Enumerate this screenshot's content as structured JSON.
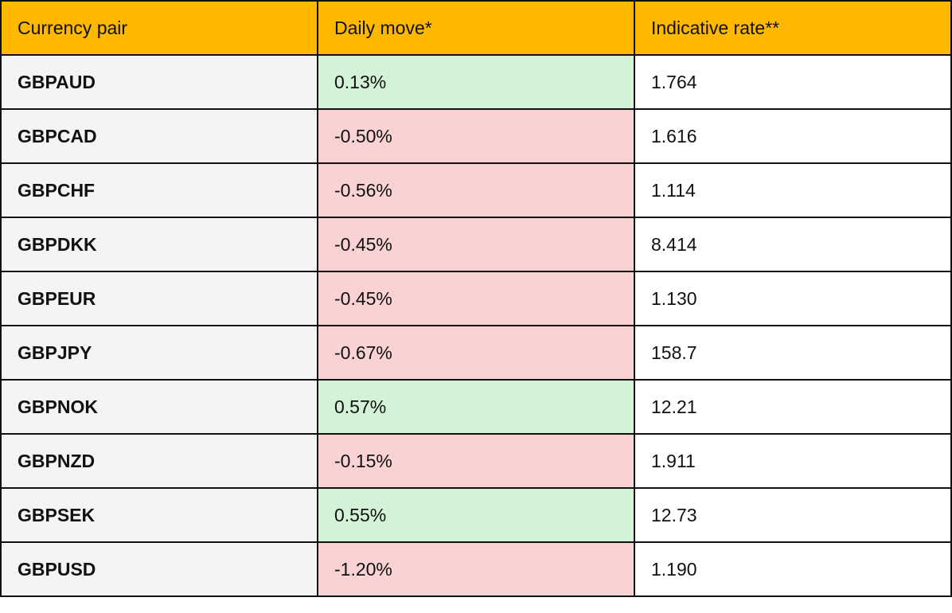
{
  "table": {
    "headers": {
      "pair": "Currency pair",
      "move": "Daily move*",
      "rate": "Indicative rate**"
    },
    "rows": [
      {
        "pair": "GBPAUD",
        "move": "0.13%",
        "direction": "up",
        "rate": "1.764"
      },
      {
        "pair": "GBPCAD",
        "move": "-0.50%",
        "direction": "down",
        "rate": "1.616"
      },
      {
        "pair": "GBPCHF",
        "move": "-0.56%",
        "direction": "down",
        "rate": "1.114"
      },
      {
        "pair": "GBPDKK",
        "move": "-0.45%",
        "direction": "down",
        "rate": "8.414"
      },
      {
        "pair": "GBPEUR",
        "move": "-0.45%",
        "direction": "down",
        "rate": "1.130"
      },
      {
        "pair": "GBPJPY",
        "move": "-0.67%",
        "direction": "down",
        "rate": "158.7"
      },
      {
        "pair": "GBPNOK",
        "move": "0.57%",
        "direction": "up",
        "rate": "12.21"
      },
      {
        "pair": "GBPNZD",
        "move": "-0.15%",
        "direction": "down",
        "rate": "1.911"
      },
      {
        "pair": "GBPSEK",
        "move": "0.55%",
        "direction": "up",
        "rate": "12.73"
      },
      {
        "pair": "GBPUSD",
        "move": "-1.20%",
        "direction": "down",
        "rate": "1.190"
      }
    ]
  },
  "colors": {
    "header_bg": "#ffb800",
    "pair_bg": "#f4f4f4",
    "positive_bg": "#d3f2d6",
    "negative_bg": "#f9d3d3",
    "border": "#111111"
  }
}
